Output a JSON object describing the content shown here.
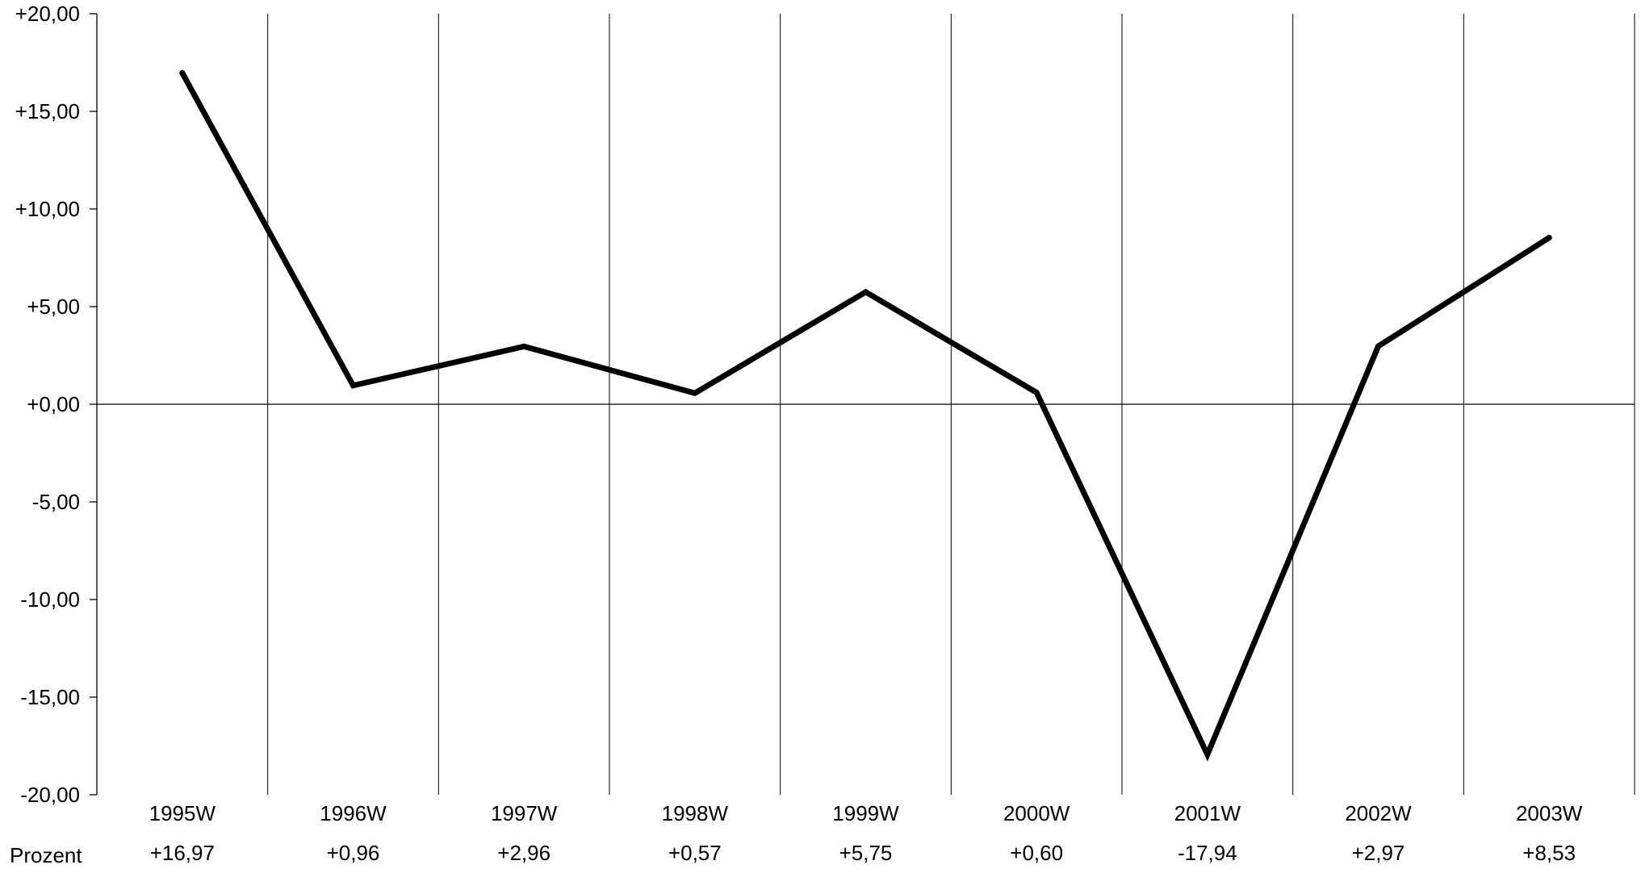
{
  "chart_data": {
    "type": "line",
    "title": "",
    "xlabel": "",
    "ylabel": "",
    "categories": [
      "1995W",
      "1996W",
      "1997W",
      "1998W",
      "1999W",
      "2000W",
      "2001W",
      "2002W",
      "2003W"
    ],
    "series": [
      {
        "values": [
          16.97,
          0.96,
          2.96,
          0.57,
          5.75,
          0.6,
          -17.94,
          2.97,
          8.53
        ]
      }
    ],
    "value_labels": [
      "+16,97",
      "+0,96",
      "+2,96",
      "+0,57",
      "+5,75",
      "+0,60",
      "-17,94",
      "+2,97",
      "+8,53"
    ],
    "table_row_label": "Prozent",
    "ylim": [
      -20,
      20
    ],
    "yticks": [
      20,
      15,
      10,
      5,
      0,
      -5,
      -10,
      -15,
      -20
    ],
    "ytick_labels": [
      "+20,00",
      "+15,00",
      "+10,00",
      "+5,00",
      "+0,00",
      "-5,00",
      "-10,00",
      "-15,00",
      "-20,00"
    ],
    "grid": "vertical",
    "legend": "none",
    "line_color": "#000000",
    "grid_color": "#000000"
  }
}
